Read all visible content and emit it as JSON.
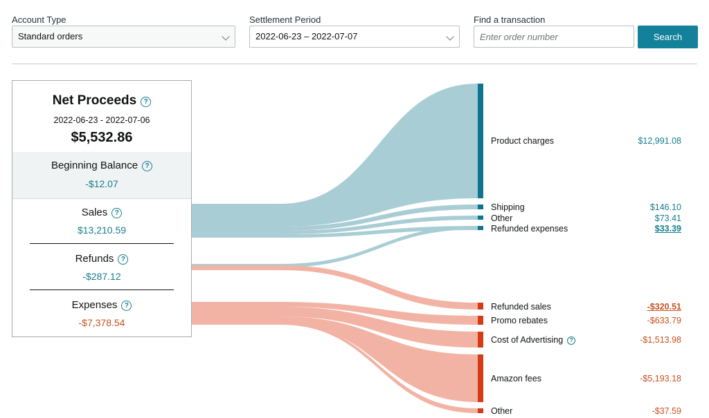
{
  "filters": {
    "account_type": {
      "label": "Account Type",
      "value": "Standard orders"
    },
    "settlement_period": {
      "label": "Settlement Period",
      "value": "2022-06-23 – 2022-07-07"
    },
    "find_transaction": {
      "label": "Find a transaction",
      "placeholder": "Enter order number",
      "button": "Search"
    }
  },
  "summary": {
    "net_proceeds": {
      "label": "Net Proceeds",
      "range": "2022-06-23 - 2022-07-06",
      "amount": "$5,532.86"
    },
    "beginning_balance": {
      "label": "Beginning Balance",
      "amount": "-$12.07"
    },
    "sales": {
      "label": "Sales",
      "amount": "$13,210.59"
    },
    "refunds": {
      "label": "Refunds",
      "amount": "-$287.12"
    },
    "expenses": {
      "label": "Expenses",
      "amount": "-$7,378.54"
    }
  },
  "breakdown": {
    "positive": [
      {
        "label": "Product charges",
        "amount": "$12,991.08"
      },
      {
        "label": "Shipping",
        "amount": "$146.10"
      },
      {
        "label": "Other",
        "amount": "$73.41"
      },
      {
        "label": "Refunded expenses",
        "amount": "$33.39"
      }
    ],
    "negative": [
      {
        "label": "Refunded sales",
        "amount": "-$320.51"
      },
      {
        "label": "Promo rebates",
        "amount": "-$633.79"
      },
      {
        "label": "Cost of Advertising",
        "amount": "-$1,513.98"
      },
      {
        "label": "Amazon fees",
        "amount": "-$5,193.18"
      },
      {
        "label": "Other",
        "amount": "-$37.59"
      }
    ]
  },
  "colors": {
    "teal_accent": "#147c8f",
    "teal_flow": "#a9cdd4",
    "red_accent": "#c7511f",
    "red_flow": "#f2b3a5",
    "teal_bar": "#0e7490",
    "red_bar": "#d63b16"
  }
}
